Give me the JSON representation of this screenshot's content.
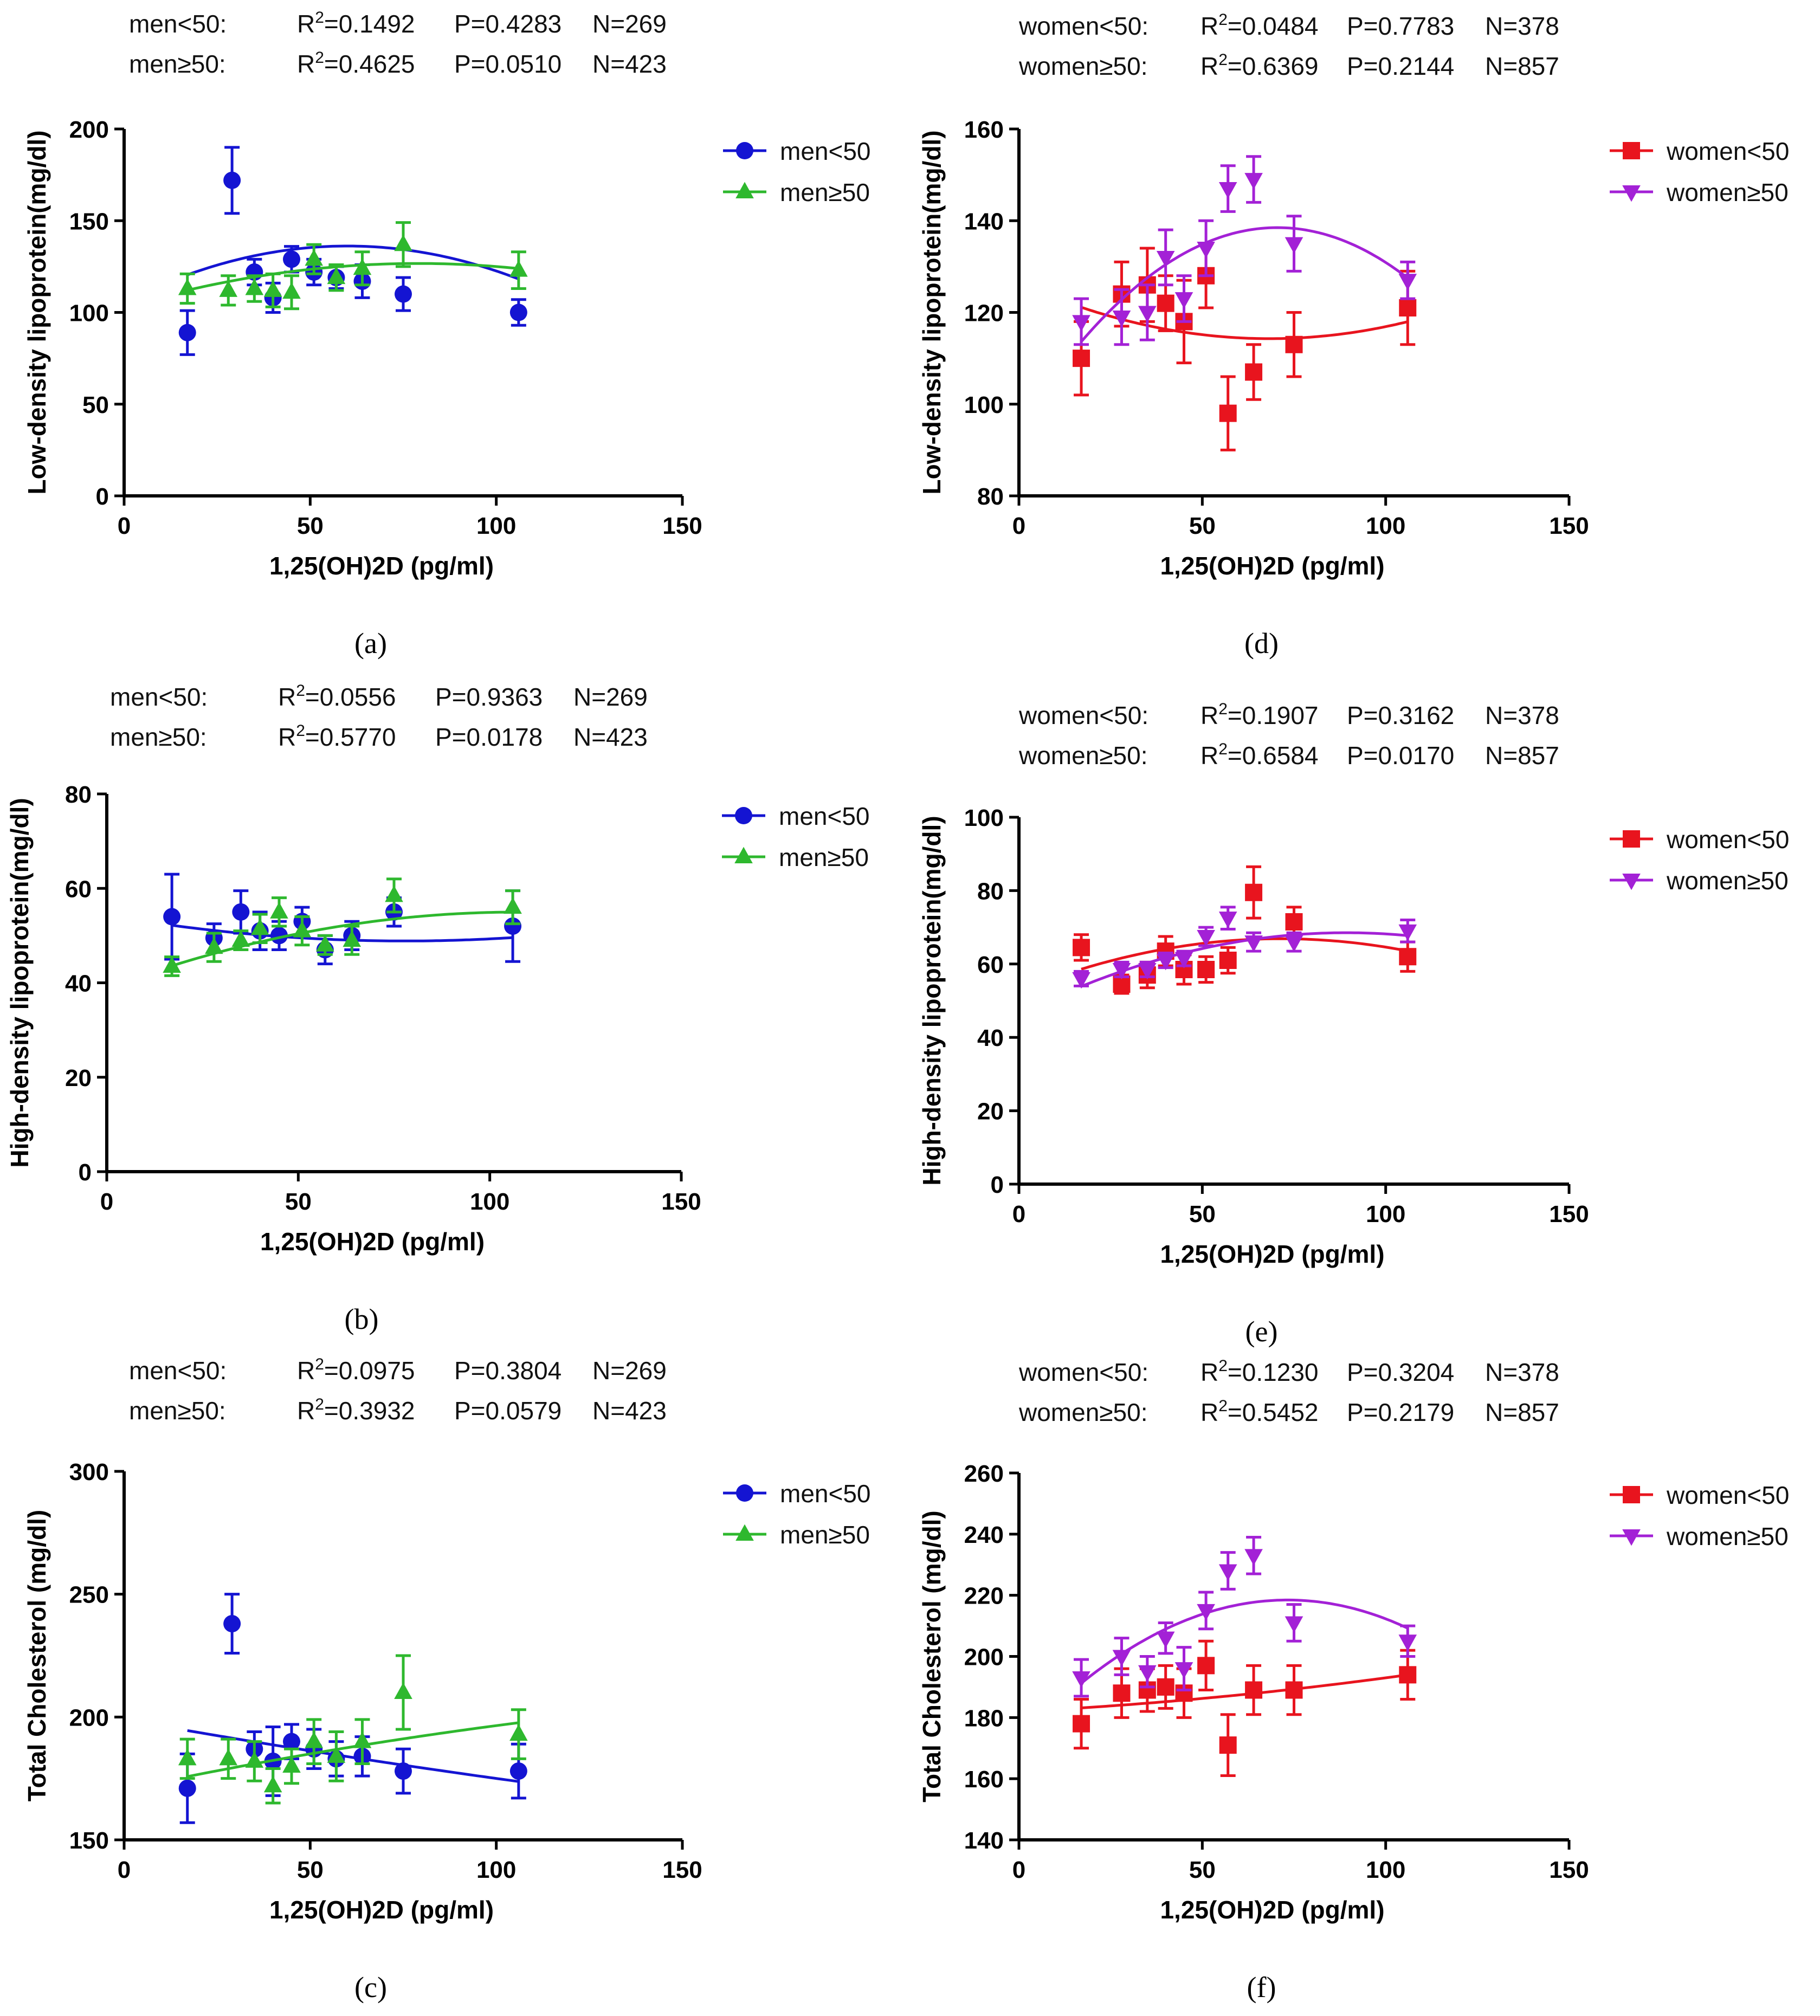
{
  "figure": {
    "chart_data": [
      {
        "panel": "a",
        "type": "scatter",
        "letter": "(a)",
        "xlabel": "1,25(OH)2D (pg/ml)",
        "ylabel": "Low-density lipoprotein(mg/dl)",
        "xlim": [
          0,
          150
        ],
        "ylim": [
          0,
          200
        ],
        "xticks": [
          0,
          50,
          100,
          150
        ],
        "yticks": [
          0,
          50,
          100,
          150,
          200
        ],
        "stats": [
          {
            "group": "men<50:",
            "r2": "=0.1492",
            "p": "P=0.4283",
            "n": "N=269"
          },
          {
            "group": "men≥50:",
            "r2": "=0.4625",
            "p": "P=0.0510",
            "n": "N=423"
          }
        ],
        "series": [
          {
            "name": "men<50",
            "color": "#1414d2",
            "marker": "circle",
            "x": [
              17,
              29,
              35,
              40,
              45,
              51,
              57,
              64,
              75,
              106
            ],
            "y": [
              89,
              172,
              122,
              108,
              129,
              122,
              119,
              117,
              110,
              100
            ],
            "err": [
              12,
              18,
              7,
              8,
              7,
              7,
              6,
              9,
              9,
              7
            ],
            "fit": [
              105.6,
              1.02,
              -0.0085
            ]
          },
          {
            "name": "men≥50",
            "color": "#2eb82e",
            "marker": "triangle-up",
            "x": [
              17,
              28,
              35,
              40,
              45,
              51,
              57,
              64,
              75,
              106
            ],
            "y": [
              113,
              112,
              113,
              112,
              111,
              129,
              119,
              124,
              137,
              123
            ],
            "err": [
              8,
              8,
              7,
              9,
              9,
              8,
              7,
              9,
              12,
              10
            ],
            "fit": [
              103,
              0.6,
              -0.0038
            ]
          }
        ]
      },
      {
        "panel": "b",
        "type": "scatter",
        "letter": "(b)",
        "xlabel": "1,25(OH)2D (pg/ml)",
        "ylabel": "High-density lipoprotein(mg/dl)",
        "xlim": [
          0,
          150
        ],
        "ylim": [
          0,
          80
        ],
        "xticks": [
          0,
          50,
          100,
          150
        ],
        "yticks": [
          0,
          20,
          40,
          60,
          80
        ],
        "stats": [
          {
            "group": "men<50:",
            "r2": "=0.0556",
            "p": "P=0.9363",
            "n": "N=269"
          },
          {
            "group": "men≥50:",
            "r2": "=0.5770",
            "p": "P=0.0178",
            "n": "N=423"
          }
        ],
        "series": [
          {
            "name": "men<50",
            "color": "#1414d2",
            "marker": "circle",
            "x": [
              17,
              28,
              35,
              40,
              45,
              51,
              57,
              64,
              75,
              106
            ],
            "y": [
              54,
              49.5,
              55,
              51,
              50,
              53,
              47,
              50,
              55,
              52
            ],
            "err": [
              9,
              3,
              4.5,
              4,
              3,
              3,
              3,
              3,
              3,
              7.5
            ],
            "fit": [
              54.3,
              -0.14,
              0.0009
            ]
          },
          {
            "name": "men≥50",
            "color": "#2eb82e",
            "marker": "triangle-up",
            "x": [
              17,
              28,
              35,
              40,
              45,
              51,
              57,
              64,
              75,
              106
            ],
            "y": [
              43.5,
              47.5,
              49,
              51.5,
              55,
              51,
              48,
              49,
              58.5,
              56
            ],
            "err": [
              2,
              3,
              2,
              3,
              3,
              3,
              2,
              3,
              3.5,
              3.5
            ],
            "fit": [
              38.9,
              0.3,
              -0.0014
            ]
          }
        ]
      },
      {
        "panel": "c",
        "type": "scatter",
        "letter": "(c)",
        "xlabel": "1,25(OH)2D (pg/ml)",
        "ylabel": "Total Cholesterol (mg/dl)",
        "xlim": [
          0,
          150
        ],
        "ylim": [
          150,
          300
        ],
        "xticks": [
          0,
          50,
          100,
          150
        ],
        "yticks": [
          150,
          200,
          250,
          300
        ],
        "stats": [
          {
            "group": "men<50:",
            "r2": "=0.0975",
            "p": "P=0.3804",
            "n": "N=269"
          },
          {
            "group": "men≥50:",
            "r2": "=0.3932",
            "p": "P=0.0579",
            "n": "N=423"
          }
        ],
        "series": [
          {
            "name": "men<50",
            "color": "#1414d2",
            "marker": "circle",
            "x": [
              17,
              29,
              35,
              40,
              45,
              51,
              57,
              64,
              75,
              106
            ],
            "y": [
              171,
              238,
              187,
              182,
              190,
              187,
              183,
              184,
              178,
              178
            ],
            "err": [
              14,
              12,
              7,
              14,
              7,
              8,
              7,
              8,
              9,
              11
            ],
            "fit": [
              199,
              -0.27,
              0.0003
            ]
          },
          {
            "name": "men≥50",
            "color": "#2eb82e",
            "marker": "triangle-up",
            "x": [
              17,
              28,
              35,
              40,
              45,
              51,
              57,
              64,
              75,
              106
            ],
            "y": [
              183,
              183,
              182,
              172,
              180,
              190,
              184,
              190,
              210,
              193
            ],
            "err": [
              8,
              8,
              8,
              7,
              7,
              9,
              10,
              9,
              15,
              10
            ],
            "fit": [
              170.5,
              0.32,
              -0.0006
            ]
          }
        ]
      },
      {
        "panel": "d",
        "type": "scatter",
        "letter": "(d)",
        "xlabel": "1,25(OH)2D (pg/ml)",
        "ylabel": "Low-density lipoprotein(mg/dl)",
        "xlim": [
          0,
          150
        ],
        "ylim": [
          80,
          160
        ],
        "xticks": [
          0,
          50,
          100,
          150
        ],
        "yticks": [
          80,
          100,
          120,
          140,
          160
        ],
        "stats": [
          {
            "group": "women<50:",
            "r2": "=0.0484",
            "p": "P=0.7783",
            "n": "N=378"
          },
          {
            "group": "women≥50:",
            "r2": "=0.6369",
            "p": "P=0.2144",
            "n": "N=857"
          }
        ],
        "series": [
          {
            "name": "women<50",
            "color": "#e8141e",
            "marker": "square",
            "x": [
              17,
              28,
              35,
              40,
              45,
              51,
              57,
              64,
              75,
              106
            ],
            "y": [
              110,
              124,
              126,
              122,
              118,
              128,
              98,
              107,
              113,
              121
            ],
            "err": [
              8,
              7,
              8,
              6,
              9,
              7,
              8,
              6,
              7,
              8
            ],
            "fit": [
              126.4,
              -0.355,
              0.0026
            ]
          },
          {
            "name": "women≥50",
            "color": "#a321d6",
            "marker": "triangle-down",
            "x": [
              17,
              28,
              35,
              40,
              45,
              51,
              57,
              64,
              75,
              106
            ],
            "y": [
              118,
              119,
              120,
              132,
              123,
              134,
              147,
              149,
              135,
              127
            ],
            "err": [
              5,
              6,
              6,
              6,
              5,
              6,
              5,
              5,
              6,
              4
            ],
            "fit": [
              95.3,
              1.226,
              -0.0087
            ]
          }
        ]
      },
      {
        "panel": "e",
        "type": "scatter",
        "letter": "(e)",
        "xlabel": "1,25(OH)2D (pg/ml)",
        "ylabel": "High-density lipoprotein(mg/dl)",
        "xlim": [
          0,
          150
        ],
        "ylim": [
          0,
          100
        ],
        "xticks": [
          0,
          50,
          100,
          150
        ],
        "yticks": [
          0,
          20,
          40,
          60,
          80,
          100
        ],
        "stats": [
          {
            "group": "women<50:",
            "r2": "=0.1907",
            "p": "P=0.3162",
            "n": "N=378"
          },
          {
            "group": "women≥50:",
            "r2": "=0.6584",
            "p": "P=0.0170",
            "n": "N=857"
          }
        ],
        "series": [
          {
            "name": "women<50",
            "color": "#e8141e",
            "marker": "square",
            "x": [
              17,
              28,
              35,
              40,
              45,
              51,
              57,
              64,
              75,
              106
            ],
            "y": [
              64.5,
              54.5,
              57,
              63.5,
              58.5,
              58.5,
              61,
              79.5,
              71.5,
              62
            ],
            "err": [
              3.5,
              2.5,
              3.5,
              4,
              4,
              3.5,
              3.5,
              7,
              4,
              4
            ],
            "fit": [
              52.6,
              0.4,
              -0.0028
            ]
          },
          {
            "name": "women≥50",
            "color": "#a321d6",
            "marker": "triangle-down",
            "x": [
              17,
              28,
              35,
              40,
              45,
              51,
              57,
              64,
              75,
              106
            ],
            "y": [
              56,
              58.5,
              58.5,
              61,
              61.5,
              67.5,
              72.5,
              66,
              66,
              69
            ],
            "err": [
              2,
              2,
              2,
              2,
              2,
              2.5,
              3,
              2.5,
              2.5,
              3
            ],
            "fit": [
              46.2,
              0.5,
              -0.0028
            ]
          }
        ]
      },
      {
        "panel": "f",
        "type": "scatter",
        "letter": "(f)",
        "xlabel": "1,25(OH)2D (pg/ml)",
        "ylabel": "Total Cholesterol (mg/dl)",
        "xlim": [
          0,
          150
        ],
        "ylim": [
          140,
          260
        ],
        "xticks": [
          0,
          50,
          100,
          150
        ],
        "yticks": [
          140,
          160,
          180,
          200,
          220,
          240,
          260
        ],
        "stats": [
          {
            "group": "women<50:",
            "r2": "=0.1230",
            "p": "P=0.3204",
            "n": "N=378"
          },
          {
            "group": "women≥50:",
            "r2": "=0.5452",
            "p": "P=0.2179",
            "n": "N=857"
          }
        ],
        "series": [
          {
            "name": "women<50",
            "color": "#e8141e",
            "marker": "square",
            "x": [
              17,
              28,
              35,
              40,
              45,
              51,
              57,
              64,
              75,
              106
            ],
            "y": [
              178,
              188,
              189,
              190,
              188,
              197,
              171,
              189,
              189,
              194
            ],
            "err": [
              8,
              8,
              7,
              7,
              8,
              8,
              10,
              8,
              8,
              8
            ],
            "fit": [
              182,
              0.06,
              0.0005
            ]
          },
          {
            "name": "women≥50",
            "color": "#a321d6",
            "marker": "triangle-down",
            "x": [
              17,
              28,
              35,
              40,
              45,
              51,
              57,
              64,
              75,
              106
            ],
            "y": [
              193,
              200,
              195,
              206,
              196,
              215,
              228,
              233,
              211,
              205
            ],
            "err": [
              6,
              6,
              5,
              5,
              7,
              6,
              6,
              6,
              6,
              5
            ],
            "fit": [
              172.3,
              1.26,
              -0.0086
            ]
          }
        ]
      }
    ]
  }
}
